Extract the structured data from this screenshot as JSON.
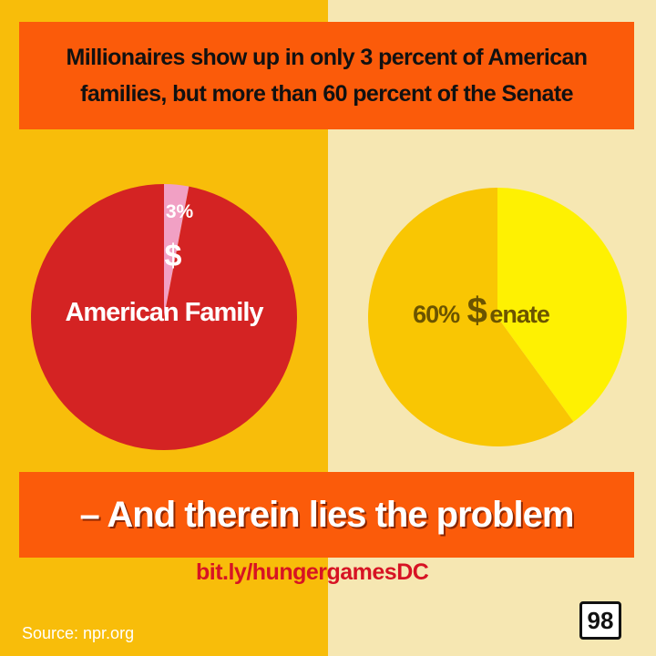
{
  "headline": "Millionaires show up in only 3 percent of American families, but more than 60 percent of the Senate",
  "tagline": "– And therein lies the problem",
  "link": "bit.ly/hungergamesDC",
  "source": "Source: npr.org",
  "badge": "98",
  "colors": {
    "left_background": "#f8bd0a",
    "right_background": "#f6e7b2",
    "banner": "#fb5b0a",
    "family_pie": "#d42323",
    "family_millionaire": "#f1a0c4",
    "senate_pie": "#f9c603",
    "senate_millionaire": "#fef102"
  },
  "chart_data": [
    {
      "type": "pie",
      "center_label": "American Family",
      "slices": [
        {
          "label": "3%",
          "value": 3,
          "marker": "$",
          "color": "#f1a0c4"
        },
        {
          "label": "",
          "value": 97,
          "color": "#d42323"
        }
      ]
    },
    {
      "type": "pie",
      "center_label": "60% $enate",
      "center_label_parts": {
        "percent": "60%",
        "dollar": "$",
        "rest": "enate"
      },
      "slices": [
        {
          "label": "",
          "value": 40,
          "color": "#fef102"
        },
        {
          "label": "",
          "value": 60,
          "color": "#f9c603"
        }
      ]
    }
  ]
}
